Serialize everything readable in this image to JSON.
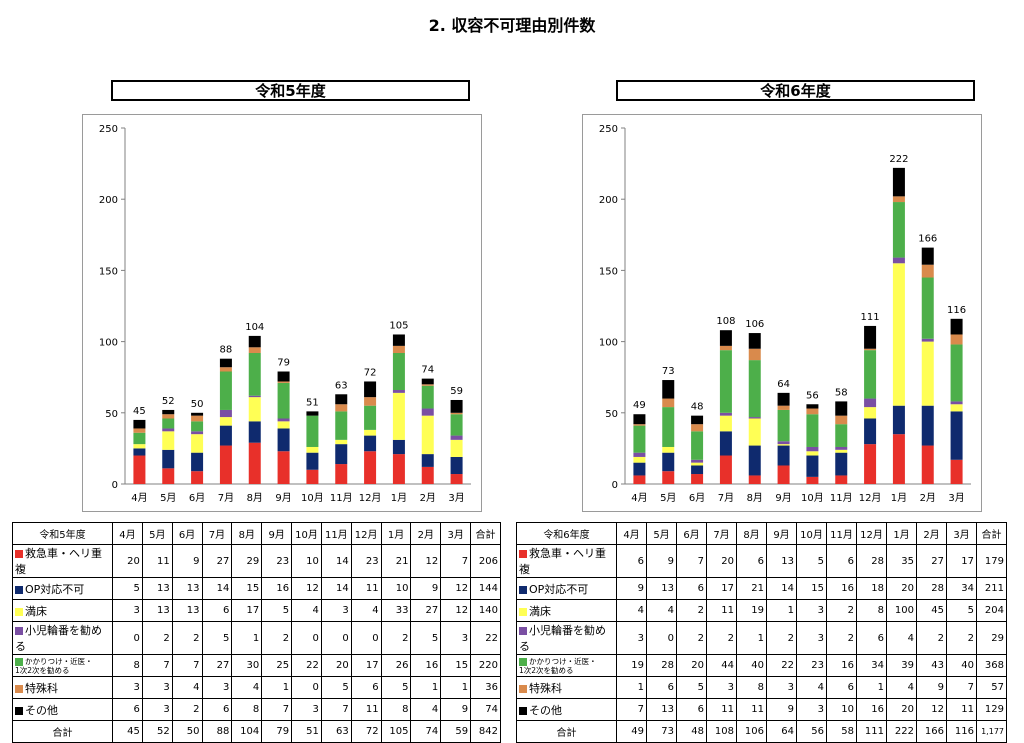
{
  "title": "2. 収容不可理由別件数",
  "categories": [
    "4月",
    "5月",
    "6月",
    "7月",
    "8月",
    "9月",
    "10月",
    "11月",
    "12月",
    "1月",
    "2月",
    "3月"
  ],
  "yticks": [
    "0",
    "50",
    "100",
    "150",
    "200",
    "250"
  ],
  "colors": {
    "救急車・ヘリ重複": "#e8302a",
    "OP対応不可": "#0f2a6e",
    "満床": "#ffff55",
    "小児輪番を勧める": "#7a4fa3",
    "かかりつけ・近医・1次2次を勧める": "#4daf4a",
    "特殊科": "#d98a4c",
    "その他": "#000000"
  },
  "panels": [
    {
      "title": "令和5年度",
      "table_header": "令和5年度",
      "total_label": "合計",
      "col_total_header": "合計",
      "grand_total": "842",
      "totals": [
        "45",
        "52",
        "50",
        "88",
        "104",
        "79",
        "51",
        "63",
        "72",
        "105",
        "74",
        "59"
      ],
      "chart_data": {
        "type": "bar",
        "stacked": true,
        "categories": [
          "4月",
          "5月",
          "6月",
          "7月",
          "8月",
          "9月",
          "10月",
          "11月",
          "12月",
          "1月",
          "2月",
          "3月"
        ],
        "ylim": [
          0,
          250
        ],
        "grid": false,
        "series": [
          {
            "name": "救急車・ヘリ重複",
            "values": [
              20,
              11,
              9,
              27,
              29,
              23,
              10,
              14,
              23,
              21,
              12,
              7
            ],
            "total": "206"
          },
          {
            "name": "OP対応不可",
            "values": [
              5,
              13,
              13,
              14,
              15,
              16,
              12,
              14,
              11,
              10,
              9,
              12
            ],
            "total": "144"
          },
          {
            "name": "満床",
            "values": [
              3,
              13,
              13,
              6,
              17,
              5,
              4,
              3,
              4,
              33,
              27,
              12
            ],
            "total": "140"
          },
          {
            "name": "小児輪番を勧める",
            "values": [
              0,
              2,
              2,
              5,
              1,
              2,
              0,
              0,
              0,
              2,
              5,
              3
            ],
            "total": "22"
          },
          {
            "name": "かかりつけ・近医・1次2次を勧める",
            "values": [
              8,
              7,
              7,
              27,
              30,
              25,
              22,
              20,
              17,
              26,
              16,
              15
            ],
            "total": "220"
          },
          {
            "name": "特殊科",
            "values": [
              3,
              3,
              4,
              3,
              4,
              1,
              0,
              5,
              6,
              5,
              1,
              1
            ],
            "total": "36"
          },
          {
            "name": "その他",
            "values": [
              6,
              3,
              2,
              6,
              8,
              7,
              3,
              7,
              11,
              8,
              4,
              9
            ],
            "total": "74"
          }
        ],
        "data_labels": [
          "45",
          "52",
          "50",
          "88",
          "104",
          "79",
          "51",
          "63",
          "72",
          "105",
          "74",
          "59"
        ]
      }
    },
    {
      "title": "令和6年度",
      "table_header": "令和6年度",
      "total_label": "合計",
      "col_total_header": "合計",
      "grand_total": "1,177",
      "totals": [
        "49",
        "73",
        "48",
        "108",
        "106",
        "64",
        "56",
        "58",
        "111",
        "222",
        "166",
        "116"
      ],
      "chart_data": {
        "type": "bar",
        "stacked": true,
        "categories": [
          "4月",
          "5月",
          "6月",
          "7月",
          "8月",
          "9月",
          "10月",
          "11月",
          "12月",
          "1月",
          "2月",
          "3月"
        ],
        "ylim": [
          0,
          250
        ],
        "grid": false,
        "series": [
          {
            "name": "救急車・ヘリ重複",
            "values": [
              6,
              9,
              7,
              20,
              6,
              13,
              5,
              6,
              28,
              35,
              27,
              17
            ],
            "total": "179"
          },
          {
            "name": "OP対応不可",
            "values": [
              9,
              13,
              6,
              17,
              21,
              14,
              15,
              16,
              18,
              20,
              28,
              34
            ],
            "total": "211"
          },
          {
            "name": "満床",
            "values": [
              4,
              4,
              2,
              11,
              19,
              1,
              3,
              2,
              8,
              100,
              45,
              5
            ],
            "total": "204"
          },
          {
            "name": "小児輪番を勧める",
            "values": [
              3,
              0,
              2,
              2,
              1,
              2,
              3,
              2,
              6,
              4,
              2,
              2
            ],
            "total": "29"
          },
          {
            "name": "かかりつけ・近医・1次2次を勧める",
            "values": [
              19,
              28,
              20,
              44,
              40,
              22,
              23,
              16,
              34,
              39,
              43,
              40
            ],
            "total": "368"
          },
          {
            "name": "特殊科",
            "values": [
              1,
              6,
              5,
              3,
              8,
              3,
              4,
              6,
              1,
              4,
              9,
              7
            ],
            "total": "57"
          },
          {
            "name": "その他",
            "values": [
              7,
              13,
              6,
              11,
              11,
              9,
              3,
              10,
              16,
              20,
              12,
              11
            ],
            "total": "129"
          }
        ],
        "data_labels": [
          "49",
          "73",
          "48",
          "108",
          "106",
          "64",
          "56",
          "58",
          "111",
          "222",
          "166",
          "116"
        ]
      }
    }
  ],
  "row_labels": [
    "救急車・ヘリ重複",
    "OP対応不可",
    "満床",
    "小児輪番を勧める",
    "かかりつけ・近医・\n1次2次を勧める",
    "特殊科",
    "その他"
  ]
}
